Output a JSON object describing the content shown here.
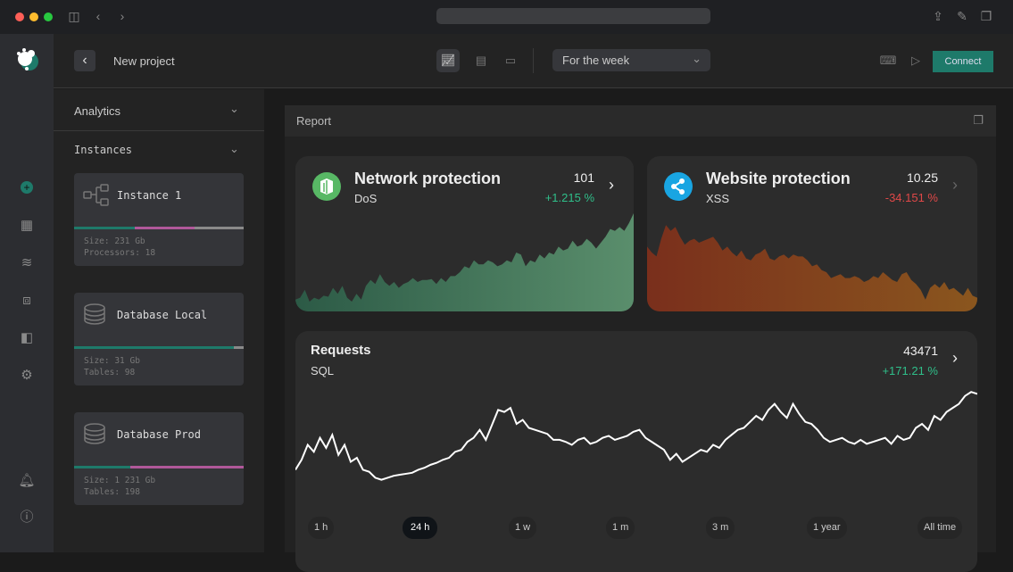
{
  "header": {
    "project_title": "New project",
    "period": "For the week",
    "connect_label": "Connect"
  },
  "sidebar": {
    "analytics_label": "Analytics",
    "instances_label": "Instances",
    "instances": [
      {
        "name": "Instance 1",
        "meta1": "Size: 231 Gb",
        "meta2": "Processors: 18",
        "usage": [
          0.36,
          0.35,
          0.29
        ]
      },
      {
        "name": "Database Local",
        "meta1": "Size: 31 Gb",
        "meta2": "Tables: 98",
        "usage": [
          0.94,
          0,
          0.06
        ]
      },
      {
        "name": "Database Prod",
        "meta1": "Size: 1 231 Gb",
        "meta2": "Tables: 198",
        "usage": [
          0.33,
          0.67,
          0
        ]
      }
    ]
  },
  "report": {
    "title": "Report",
    "network": {
      "title": "Network protection",
      "subtitle": "DoS",
      "value": "101",
      "change": "+1.215 %"
    },
    "website": {
      "title": "Website protection",
      "subtitle": "XSS",
      "value": "10.25",
      "change": "-34.151 %"
    },
    "requests": {
      "title": "Requests",
      "subtitle": "SQL",
      "value": "43471",
      "change": "+171.21 %",
      "ranges": [
        "1 h",
        "24 h",
        "1 w",
        "1 m",
        "3 m",
        "1 year",
        "All time"
      ],
      "active_range": "24 h"
    }
  },
  "colors": {
    "accent": "#1e7a6a",
    "positive": "#2fbf8a",
    "negative": "#e04848",
    "pink": "#b0589a"
  },
  "chart_data": [
    {
      "type": "area",
      "name": "network",
      "values": [
        12,
        14,
        22,
        10,
        14,
        12,
        16,
        15,
        24,
        18,
        26,
        14,
        10,
        18,
        12,
        26,
        32,
        28,
        38,
        30,
        26,
        30,
        24,
        28,
        30,
        34,
        30,
        32,
        32,
        33,
        28,
        34,
        30,
        36,
        36,
        40,
        46,
        44,
        52,
        48,
        48,
        52,
        50,
        46,
        48,
        52,
        50,
        60,
        58,
        46,
        52,
        50,
        58,
        54,
        60,
        58,
        66,
        62,
        64,
        72,
        66,
        68,
        74,
        70,
        64,
        70,
        76,
        84,
        82,
        86,
        82,
        90,
        100
      ]
    },
    {
      "type": "area",
      "name": "website",
      "values": [
        66,
        60,
        56,
        74,
        88,
        82,
        86,
        76,
        68,
        72,
        74,
        70,
        72,
        74,
        76,
        70,
        62,
        66,
        60,
        56,
        62,
        54,
        52,
        58,
        60,
        64,
        54,
        52,
        56,
        58,
        54,
        58,
        56,
        56,
        52,
        46,
        48,
        42,
        40,
        34,
        36,
        38,
        34,
        34,
        36,
        34,
        30,
        32,
        36,
        34,
        40,
        36,
        32,
        30,
        38,
        40,
        32,
        28,
        22,
        12,
        24,
        28,
        24,
        30,
        22,
        24,
        20,
        16,
        24,
        16,
        14
      ]
    },
    {
      "type": "line",
      "name": "requests",
      "values": [
        30,
        40,
        55,
        48,
        62,
        52,
        65,
        45,
        55,
        38,
        42,
        30,
        28,
        22,
        20,
        22,
        24,
        25,
        26,
        27,
        30,
        32,
        35,
        37,
        40,
        42,
        48,
        50,
        58,
        62,
        70,
        60,
        75,
        90,
        88,
        92,
        76,
        80,
        72,
        70,
        68,
        66,
        60,
        60,
        58,
        55,
        60,
        62,
        56,
        58,
        62,
        64,
        60,
        62,
        64,
        68,
        70,
        62,
        58,
        54,
        50,
        40,
        46,
        38,
        42,
        46,
        50,
        48,
        55,
        52,
        60,
        65,
        70,
        72,
        78,
        84,
        80,
        90,
        96,
        88,
        82,
        96,
        86,
        78,
        76,
        70,
        62,
        58,
        60,
        62,
        58,
        56,
        60,
        56,
        58,
        60,
        62,
        56,
        64,
        60,
        62,
        72,
        76,
        70,
        84,
        80,
        88,
        92,
        96,
        104,
        108,
        106
      ]
    }
  ]
}
